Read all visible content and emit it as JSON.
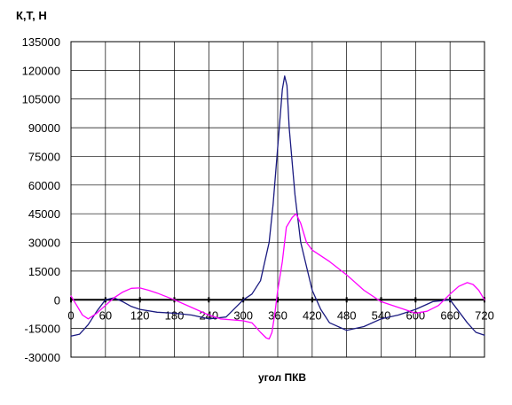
{
  "chart_data": {
    "type": "line",
    "title": "",
    "xlabel": "угол ПКВ",
    "ylabel": "К,Т, Н",
    "xlim": [
      0,
      720
    ],
    "ylim": [
      -30000,
      135000
    ],
    "grid": true,
    "x_ticks": [
      "0",
      "60",
      "120",
      "180",
      "240",
      "300",
      "360",
      "420",
      "480",
      "540",
      "600",
      "660",
      "720"
    ],
    "y_ticks": [
      "135000",
      "120000",
      "105000",
      "90000",
      "75000",
      "60000",
      "45000",
      "30000",
      "15000",
      "0",
      "-15000",
      "-30000"
    ],
    "colors": {
      "series_1": "#1a1a80",
      "series_2": "#ff00ff",
      "grid": "#000000"
    },
    "series": [
      {
        "x": [
          0,
          15,
          30,
          45,
          60,
          75,
          90,
          105,
          120,
          150,
          180,
          210,
          240,
          270,
          300,
          315,
          330,
          345,
          352,
          360,
          368,
          372,
          376,
          380,
          390,
          400,
          420,
          435,
          450,
          480,
          510,
          540,
          570,
          600,
          630,
          660,
          690,
          705,
          720
        ],
        "values": [
          -19000,
          -18000,
          -13000,
          -6000,
          0,
          1000,
          -1000,
          -3500,
          -5000,
          -6500,
          -7000,
          -8000,
          -10000,
          -9000,
          0,
          3000,
          10000,
          30000,
          50000,
          80000,
          110000,
          117000,
          112000,
          90000,
          55000,
          30000,
          5000,
          -5000,
          -12000,
          -16000,
          -14000,
          -10000,
          -8000,
          -5000,
          -1000,
          0,
          -12000,
          -17000,
          -18500
        ]
      },
      {
        "x": [
          0,
          10,
          20,
          30,
          45,
          60,
          75,
          90,
          105,
          120,
          135,
          150,
          180,
          210,
          240,
          260,
          280,
          300,
          315,
          330,
          340,
          345,
          350,
          355,
          360,
          368,
          375,
          385,
          392,
          400,
          410,
          420,
          450,
          480,
          510,
          540,
          570,
          600,
          620,
          640,
          660,
          675,
          690,
          700,
          710,
          720
        ],
        "values": [
          2000,
          -3000,
          -8000,
          -10000,
          -7000,
          -3000,
          1000,
          4000,
          6000,
          6200,
          5000,
          3500,
          0,
          -4000,
          -8000,
          -10000,
          -10500,
          -11000,
          -12000,
          -17000,
          -20000,
          -20500,
          -17000,
          -7000,
          5000,
          20000,
          38000,
          43000,
          45000,
          40000,
          30000,
          26000,
          20000,
          13000,
          5000,
          -1000,
          -4000,
          -7000,
          -6000,
          -3000,
          3000,
          7000,
          9000,
          8000,
          5000,
          0
        ]
      }
    ]
  }
}
